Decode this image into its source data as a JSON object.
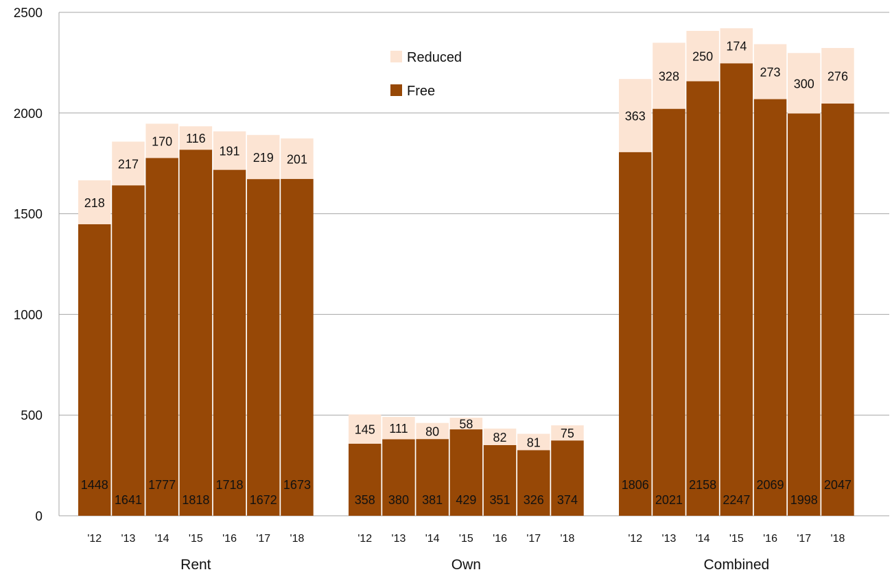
{
  "chart_data": {
    "type": "bar",
    "stacked": true,
    "title": "",
    "xlabel": "",
    "ylabel": "",
    "ylim": [
      0,
      2500
    ],
    "yticks": [
      "0",
      "500",
      "1000",
      "1500",
      "2000",
      "2500"
    ],
    "grid": true,
    "legend_position": "top-center",
    "groups": [
      {
        "label": "Rent",
        "categories": [
          "'12",
          "'13",
          "'14",
          "'15",
          "'16",
          "'17",
          "'18"
        ],
        "free": [
          1448,
          1641,
          1777,
          1818,
          1718,
          1672,
          1673
        ],
        "reduced": [
          218,
          217,
          170,
          116,
          191,
          219,
          201
        ]
      },
      {
        "label": "Own",
        "categories": [
          "'12",
          "'13",
          "'14",
          "'15",
          "'16",
          "'17",
          "'18"
        ],
        "free": [
          358,
          380,
          381,
          429,
          351,
          326,
          374
        ],
        "reduced": [
          145,
          111,
          80,
          58,
          82,
          81,
          75
        ]
      },
      {
        "label": "Combined",
        "categories": [
          "'12",
          "'13",
          "'14",
          "'15",
          "'16",
          "'17",
          "'18"
        ],
        "free": [
          1806,
          2021,
          2158,
          2247,
          2069,
          1998,
          2047
        ],
        "reduced": [
          363,
          328,
          250,
          174,
          273,
          300,
          276
        ]
      }
    ],
    "series": [
      {
        "name": "Reduced",
        "color": "#fce4d3"
      },
      {
        "name": "Free",
        "color": "#974806"
      }
    ]
  }
}
